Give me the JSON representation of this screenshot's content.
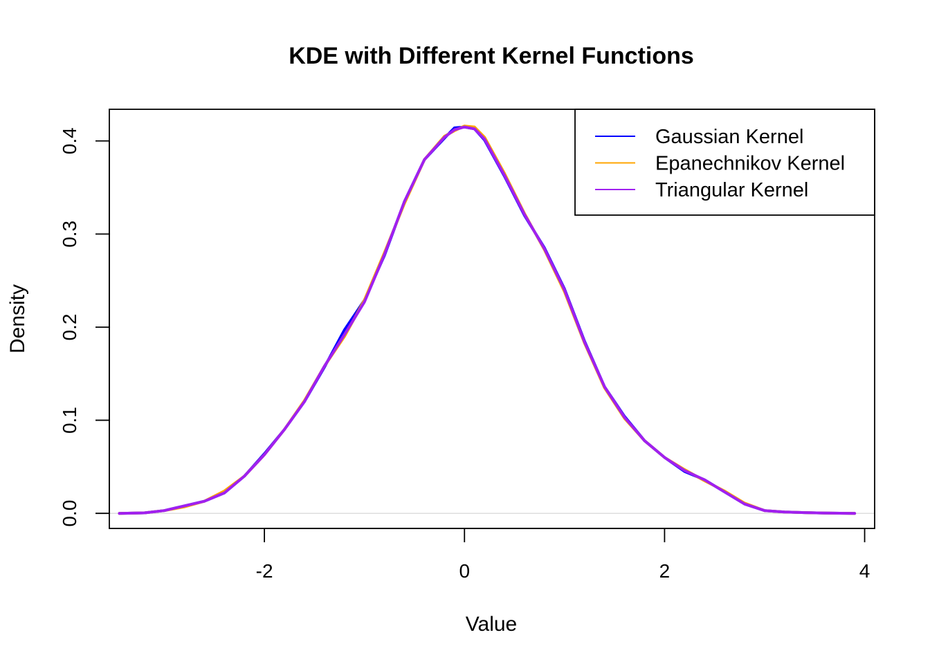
{
  "chart_data": {
    "type": "line",
    "title": "KDE with Different Kernel Functions",
    "xlabel": "Value",
    "ylabel": "Density",
    "xlim": [
      -3.55,
      4.1
    ],
    "ylim": [
      -0.0162,
      0.434
    ],
    "x_ticks": [
      -2,
      0,
      2,
      4
    ],
    "x_tick_labels": [
      "-2",
      "0",
      "2",
      "4"
    ],
    "y_ticks": [
      0.0,
      0.1,
      0.2,
      0.3,
      0.4
    ],
    "y_tick_labels": [
      "0.0",
      "0.1",
      "0.2",
      "0.3",
      "0.4"
    ],
    "zero_reference_line": true,
    "grid": false,
    "legend_position": "top-right",
    "series": [
      {
        "name": "Gaussian Kernel",
        "color": "#0000FF",
        "x": [
          -3.45,
          -3.2,
          -3.0,
          -2.8,
          -2.6,
          -2.4,
          -2.2,
          -2.0,
          -1.8,
          -1.6,
          -1.4,
          -1.2,
          -1.0,
          -0.8,
          -0.6,
          -0.4,
          -0.2,
          -0.1,
          0.0,
          0.1,
          0.2,
          0.4,
          0.6,
          0.8,
          1.0,
          1.2,
          1.4,
          1.6,
          1.8,
          2.0,
          2.2,
          2.4,
          2.6,
          2.8,
          3.0,
          3.2,
          3.4,
          3.6,
          3.9
        ],
        "y": [
          0.0,
          0.0005,
          0.003,
          0.008,
          0.013,
          0.022,
          0.04,
          0.064,
          0.09,
          0.12,
          0.157,
          0.197,
          0.229,
          0.277,
          0.335,
          0.38,
          0.403,
          0.414,
          0.415,
          0.413,
          0.401,
          0.362,
          0.32,
          0.285,
          0.241,
          0.185,
          0.136,
          0.104,
          0.078,
          0.06,
          0.045,
          0.036,
          0.023,
          0.01,
          0.003,
          0.0015,
          0.0008,
          0.0003,
          0.0
        ]
      },
      {
        "name": "Epanechnikov Kernel",
        "color": "#FFA500",
        "x": [
          -3.45,
          -3.2,
          -3.0,
          -2.8,
          -2.6,
          -2.4,
          -2.2,
          -2.0,
          -1.8,
          -1.6,
          -1.4,
          -1.2,
          -1.0,
          -0.8,
          -0.6,
          -0.4,
          -0.2,
          -0.1,
          0.0,
          0.1,
          0.2,
          0.4,
          0.6,
          0.8,
          1.0,
          1.2,
          1.4,
          1.6,
          1.8,
          2.0,
          2.2,
          2.4,
          2.6,
          2.8,
          3.0,
          3.2,
          3.4,
          3.6,
          3.9
        ],
        "y": [
          0.0,
          0.0005,
          0.003,
          0.007,
          0.013,
          0.024,
          0.04,
          0.063,
          0.09,
          0.121,
          0.158,
          0.19,
          0.229,
          0.28,
          0.333,
          0.38,
          0.405,
          0.411,
          0.416,
          0.415,
          0.404,
          0.365,
          0.322,
          0.283,
          0.238,
          0.183,
          0.135,
          0.102,
          0.078,
          0.06,
          0.047,
          0.035,
          0.024,
          0.011,
          0.003,
          0.0015,
          0.0008,
          0.0003,
          0.0
        ]
      },
      {
        "name": "Triangular Kernel",
        "color": "#A020F0",
        "x": [
          -3.45,
          -3.2,
          -3.0,
          -2.8,
          -2.6,
          -2.4,
          -2.2,
          -2.0,
          -1.8,
          -1.6,
          -1.4,
          -1.2,
          -1.0,
          -0.8,
          -0.6,
          -0.4,
          -0.2,
          -0.1,
          0.0,
          0.1,
          0.2,
          0.4,
          0.6,
          0.8,
          1.0,
          1.2,
          1.4,
          1.6,
          1.8,
          2.0,
          2.2,
          2.4,
          2.6,
          2.8,
          3.0,
          3.2,
          3.4,
          3.6,
          3.9
        ],
        "y": [
          0.0,
          0.0005,
          0.003,
          0.008,
          0.013,
          0.022,
          0.04,
          0.063,
          0.09,
          0.12,
          0.158,
          0.192,
          0.227,
          0.278,
          0.335,
          0.38,
          0.404,
          0.412,
          0.415,
          0.413,
          0.402,
          0.363,
          0.321,
          0.284,
          0.24,
          0.184,
          0.136,
          0.103,
          0.078,
          0.06,
          0.046,
          0.036,
          0.023,
          0.01,
          0.003,
          0.0015,
          0.0008,
          0.0003,
          0.0
        ]
      }
    ]
  }
}
